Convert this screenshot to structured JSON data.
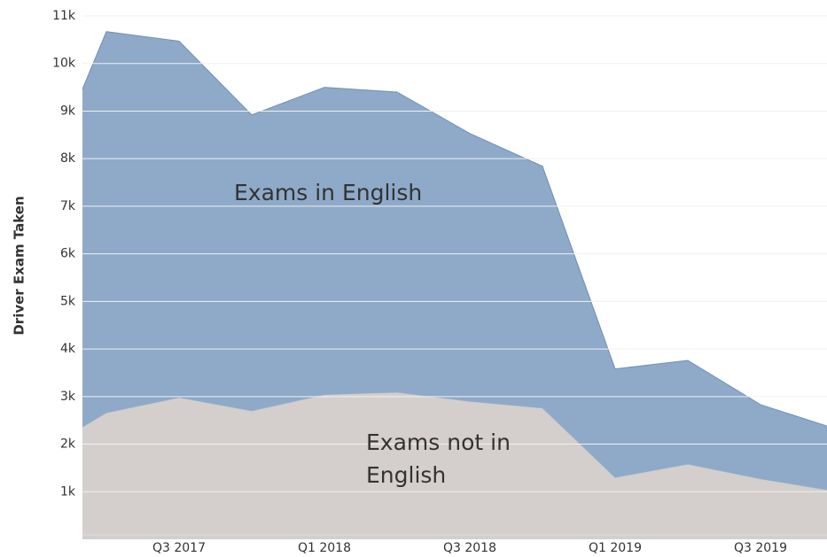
{
  "chart_data": {
    "type": "stacked-area",
    "y_label": "Driver Exam Taken",
    "categories": [
      null,
      null,
      "Q3 2017",
      null,
      "Q1 2018",
      null,
      "Q3 2018",
      null,
      "Q1 2019",
      null,
      "Q3 2019",
      null
    ],
    "series": [
      {
        "name": "Exams not in English",
        "color": "#d4cfcc",
        "values": [
          2360,
          2660,
          2980,
          2700,
          3040,
          3090,
          2900,
          2760,
          1300,
          1580,
          1270,
          1040
        ]
      },
      {
        "name": "Exams in English",
        "color": "#8eaac8",
        "values": [
          7100,
          8010,
          7490,
          6220,
          6460,
          6310,
          5630,
          5080,
          2280,
          2180,
          1560,
          1340
        ]
      }
    ],
    "ylim": [
      0,
      11000
    ],
    "yticks": [
      {
        "value": 1000,
        "label": "1k"
      },
      {
        "value": 2000,
        "label": "2k"
      },
      {
        "value": 3000,
        "label": "3k"
      },
      {
        "value": 4000,
        "label": "4k"
      },
      {
        "value": 5000,
        "label": "5k"
      },
      {
        "value": 6000,
        "label": "6k"
      },
      {
        "value": 7000,
        "label": "7k"
      },
      {
        "value": 8000,
        "label": "8k"
      },
      {
        "value": 9000,
        "label": "9k"
      },
      {
        "value": 10000,
        "label": "10k"
      },
      {
        "value": 11000,
        "label": "11k"
      }
    ],
    "grid": true
  }
}
